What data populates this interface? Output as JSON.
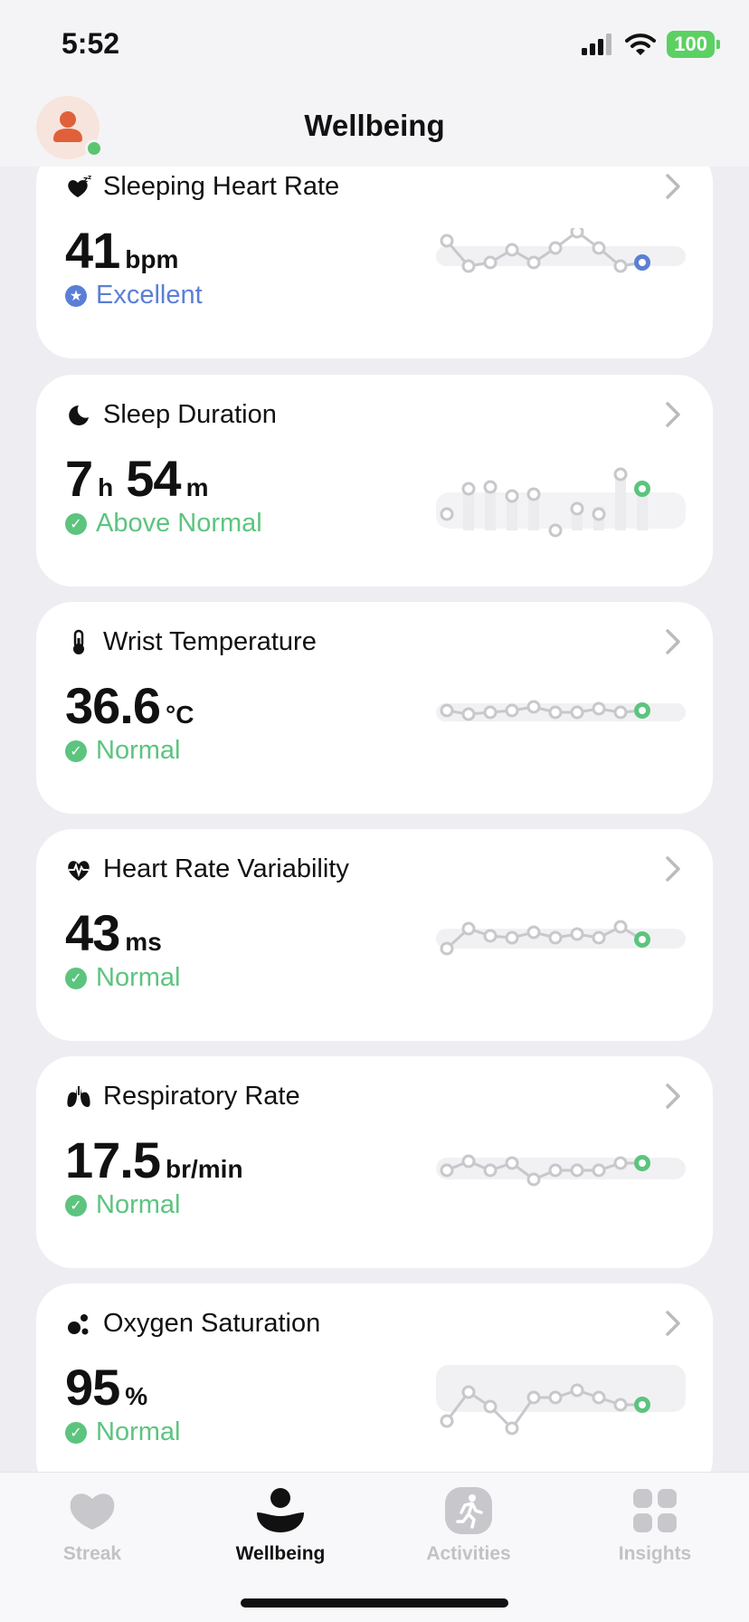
{
  "status_bar": {
    "time": "5:52",
    "battery": "100"
  },
  "header": {
    "title": "Wellbeing"
  },
  "cards": [
    {
      "title": "Sleeping Heart Rate",
      "icon": "sleeping-heart-icon",
      "value": "41",
      "unit": "bpm",
      "status": "Excellent",
      "status_color": "#5b7fd6"
    },
    {
      "title": "Sleep Duration",
      "icon": "moon-icon",
      "value_h": "7",
      "unit_h": "h",
      "value_m": "54",
      "unit_m": "m",
      "status": "Above Normal",
      "status_color": "#5cc47f"
    },
    {
      "title": "Wrist Temperature",
      "icon": "thermometer-icon",
      "value": "36.6",
      "unit": "°C",
      "status": "Normal",
      "status_color": "#5cc47f"
    },
    {
      "title": "Heart Rate Variability",
      "icon": "heart-rate-variability-icon",
      "value": "43",
      "unit": "ms",
      "status": "Normal",
      "status_color": "#5cc47f"
    },
    {
      "title": "Respiratory Rate",
      "icon": "lungs-icon",
      "value": "17.5",
      "unit": "br/min",
      "status": "Normal",
      "status_color": "#5cc47f"
    },
    {
      "title": "Oxygen Saturation",
      "icon": "oxygen-icon",
      "value": "95",
      "unit": "%",
      "status": "Normal",
      "status_color": "#5cc47f"
    }
  ],
  "tabs": [
    {
      "label": "Streak",
      "icon": "heart-icon",
      "active": false
    },
    {
      "label": "Wellbeing",
      "icon": "person-icon",
      "active": true
    },
    {
      "label": "Activities",
      "icon": "runner-icon",
      "active": false
    },
    {
      "label": "Insights",
      "icon": "grid-icon",
      "active": false
    }
  ]
}
